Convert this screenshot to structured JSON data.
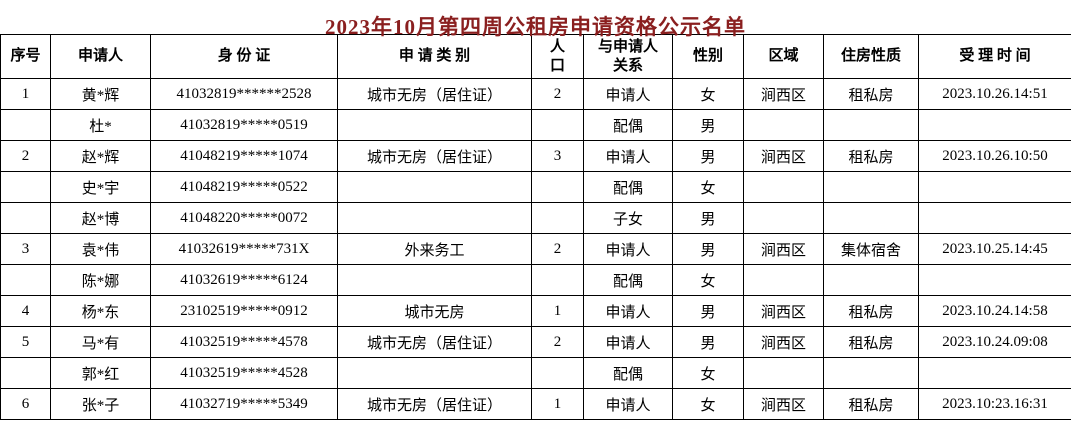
{
  "title": "2023年10月第四周公租房申请资格公示名单",
  "title_color": "#8a1f1f",
  "border_color": "#000000",
  "table": {
    "header": [
      "序号",
      "申请人",
      "身 份 证",
      "申 请 类 别",
      "人\n口",
      "与申请人\n关系",
      "性别",
      "区域",
      "住房性质",
      "受 理 时 间"
    ],
    "rows": [
      [
        "1",
        "黄*辉",
        "41032819******2528",
        "城市无房（居住证）",
        "2",
        "申请人",
        "女",
        "涧西区",
        "租私房",
        "2023.10.26.14:51"
      ],
      [
        "",
        "杜*",
        "41032819*****0519",
        "",
        "",
        "配偶",
        "男",
        "",
        "",
        ""
      ],
      [
        "2",
        "赵*辉",
        "41048219*****1074",
        "城市无房（居住证）",
        "3",
        "申请人",
        "男",
        "涧西区",
        "租私房",
        "2023.10.26.10:50"
      ],
      [
        "",
        "史*宇",
        "41048219*****0522",
        "",
        "",
        "配偶",
        "女",
        "",
        "",
        ""
      ],
      [
        "",
        "赵*博",
        "41048220*****0072",
        "",
        "",
        "子女",
        "男",
        "",
        "",
        ""
      ],
      [
        "3",
        "袁*伟",
        "41032619*****731X",
        "外来务工",
        "2",
        "申请人",
        "男",
        "涧西区",
        "集体宿舍",
        "2023.10.25.14:45"
      ],
      [
        "",
        "陈*娜",
        "41032619*****6124",
        "",
        "",
        "配偶",
        "女",
        "",
        "",
        ""
      ],
      [
        "4",
        "杨*东",
        "23102519*****0912",
        "城市无房",
        "1",
        "申请人",
        "男",
        "涧西区",
        "租私房",
        "2023.10.24.14:58"
      ],
      [
        "5",
        "马*有",
        "41032519*****4578",
        "城市无房（居住证）",
        "2",
        "申请人",
        "男",
        "涧西区",
        "租私房",
        "2023.10.24.09:08"
      ],
      [
        "",
        "郭*红",
        "41032519*****4528",
        "",
        "",
        "配偶",
        "女",
        "",
        "",
        ""
      ],
      [
        "6",
        "张*子",
        "41032719*****5349",
        "城市无房（居住证）",
        "1",
        "申请人",
        "女",
        "涧西区",
        "租私房",
        "2023.10:23.16:31"
      ]
    ]
  }
}
